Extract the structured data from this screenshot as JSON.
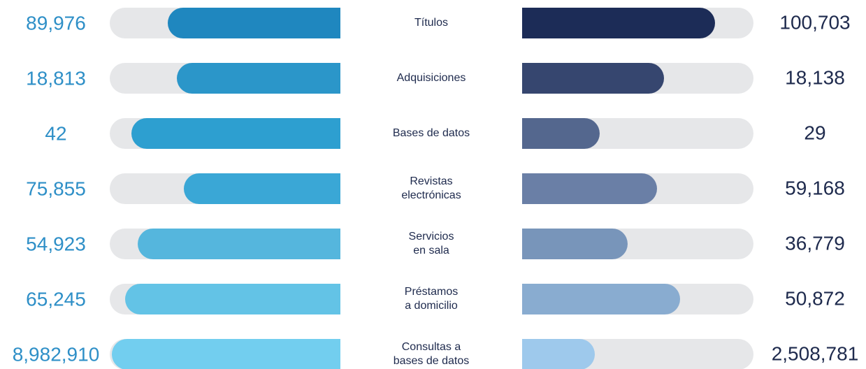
{
  "rows": [
    {
      "left": "89,976",
      "label": [
        "Títulos"
      ],
      "right": "100,703"
    },
    {
      "left": "18,813",
      "label": [
        "Adquisiciones"
      ],
      "right": "18,138"
    },
    {
      "left": "42",
      "label": [
        "Bases de datos"
      ],
      "right": "29"
    },
    {
      "left": "75,855",
      "label": [
        "Revistas",
        "electrónicas"
      ],
      "right": "59,168"
    },
    {
      "left": "54,923",
      "label": [
        "Servicios",
        "en sala"
      ],
      "right": "36,779"
    },
    {
      "left": "65,245",
      "label": [
        "Préstamos",
        "a domicilio"
      ],
      "right": "50,872"
    },
    {
      "left": "8,982,910",
      "label": [
        "Consultas a",
        "bases de datos"
      ],
      "right": "2,508,781"
    }
  ]
}
